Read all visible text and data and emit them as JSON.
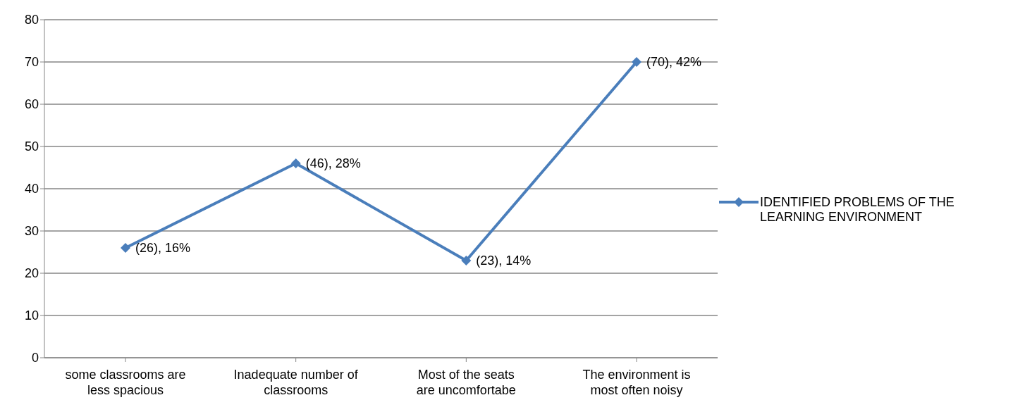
{
  "chart_data": {
    "type": "line",
    "categories": [
      "some classrooms are less spacious",
      "Inadequate number of classrooms",
      "Most of the seats are uncomfortabe",
      "The environment is most often noisy"
    ],
    "series": [
      {
        "name": "IDENTIFIED PROBLEMS OF THE LEARNING ENVIRONMENT",
        "color": "#4a7ebb",
        "values": [
          26,
          46,
          23,
          70
        ],
        "value_labels": [
          "(26), 16%",
          "(46), 28%",
          "(23), 14%",
          "(70), 42%"
        ]
      }
    ],
    "ylim": [
      0,
      80
    ],
    "yticks": [
      0,
      10,
      20,
      30,
      40,
      50,
      60,
      70,
      80
    ],
    "grid": "y",
    "legend": "right",
    "marker": "diamond",
    "line_style": "solid"
  }
}
